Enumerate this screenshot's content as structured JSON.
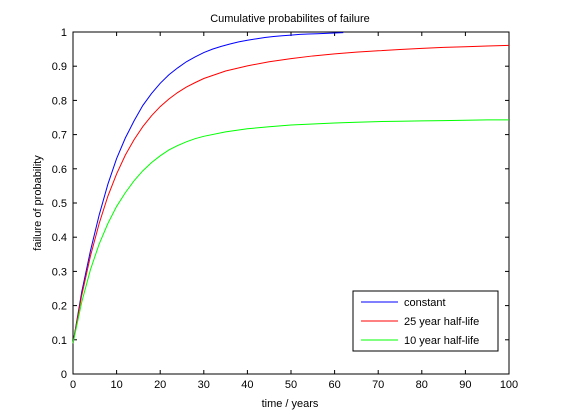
{
  "chart_data": {
    "type": "line",
    "title": "Cumulative probabilites of failure",
    "xlabel": "time / years",
    "ylabel": "failure of probability",
    "xlim": [
      0,
      100
    ],
    "ylim": [
      0,
      1
    ],
    "grid": false,
    "legend_position": "bottom-right",
    "x_ticks": [
      "0",
      "10",
      "20",
      "30",
      "40",
      "50",
      "60",
      "70",
      "80",
      "90",
      "100"
    ],
    "y_ticks": [
      "0",
      "0.1",
      "0.2",
      "0.3",
      "0.4",
      "0.5",
      "0.6",
      "0.7",
      "0.8",
      "0.9",
      "1"
    ],
    "series": [
      {
        "name": "constant",
        "color": "#0000ff",
        "x": [
          0,
          2,
          4,
          6,
          8,
          10,
          12,
          14,
          16,
          18,
          20,
          22,
          24,
          26,
          28,
          30,
          32,
          34,
          36,
          38,
          40,
          42,
          44,
          46,
          48,
          50,
          52,
          54,
          56,
          58,
          60,
          62
        ],
        "y": [
          0.09,
          0.24,
          0.36,
          0.465,
          0.555,
          0.63,
          0.69,
          0.74,
          0.785,
          0.82,
          0.85,
          0.875,
          0.895,
          0.913,
          0.927,
          0.94,
          0.95,
          0.958,
          0.965,
          0.971,
          0.976,
          0.98,
          0.984,
          0.987,
          0.989,
          0.991,
          0.993,
          0.994,
          0.995,
          0.996,
          0.997,
          0.998
        ]
      },
      {
        "name": "25 year half-life",
        "color": "#ff0000",
        "x": [
          0,
          2,
          4,
          6,
          8,
          10,
          12,
          14,
          16,
          18,
          20,
          22,
          24,
          26,
          28,
          30,
          35,
          40,
          45,
          50,
          55,
          60,
          65,
          70,
          75,
          80,
          85,
          90,
          95,
          100
        ],
        "y": [
          0.09,
          0.23,
          0.345,
          0.44,
          0.52,
          0.585,
          0.64,
          0.685,
          0.723,
          0.755,
          0.782,
          0.804,
          0.823,
          0.839,
          0.852,
          0.864,
          0.886,
          0.901,
          0.913,
          0.922,
          0.93,
          0.936,
          0.941,
          0.945,
          0.949,
          0.952,
          0.955,
          0.957,
          0.959,
          0.961
        ]
      },
      {
        "name": "10 year half-life",
        "color": "#00ff00",
        "x": [
          0,
          2,
          4,
          6,
          8,
          10,
          12,
          14,
          16,
          18,
          20,
          22,
          24,
          26,
          28,
          30,
          35,
          40,
          45,
          50,
          55,
          60,
          65,
          70,
          75,
          80,
          85,
          90,
          95,
          100
        ],
        "y": [
          0.09,
          0.21,
          0.305,
          0.38,
          0.44,
          0.49,
          0.53,
          0.565,
          0.594,
          0.618,
          0.638,
          0.655,
          0.668,
          0.679,
          0.688,
          0.695,
          0.708,
          0.717,
          0.723,
          0.728,
          0.731,
          0.734,
          0.736,
          0.738,
          0.739,
          0.74,
          0.741,
          0.742,
          0.743,
          0.743
        ]
      }
    ]
  }
}
